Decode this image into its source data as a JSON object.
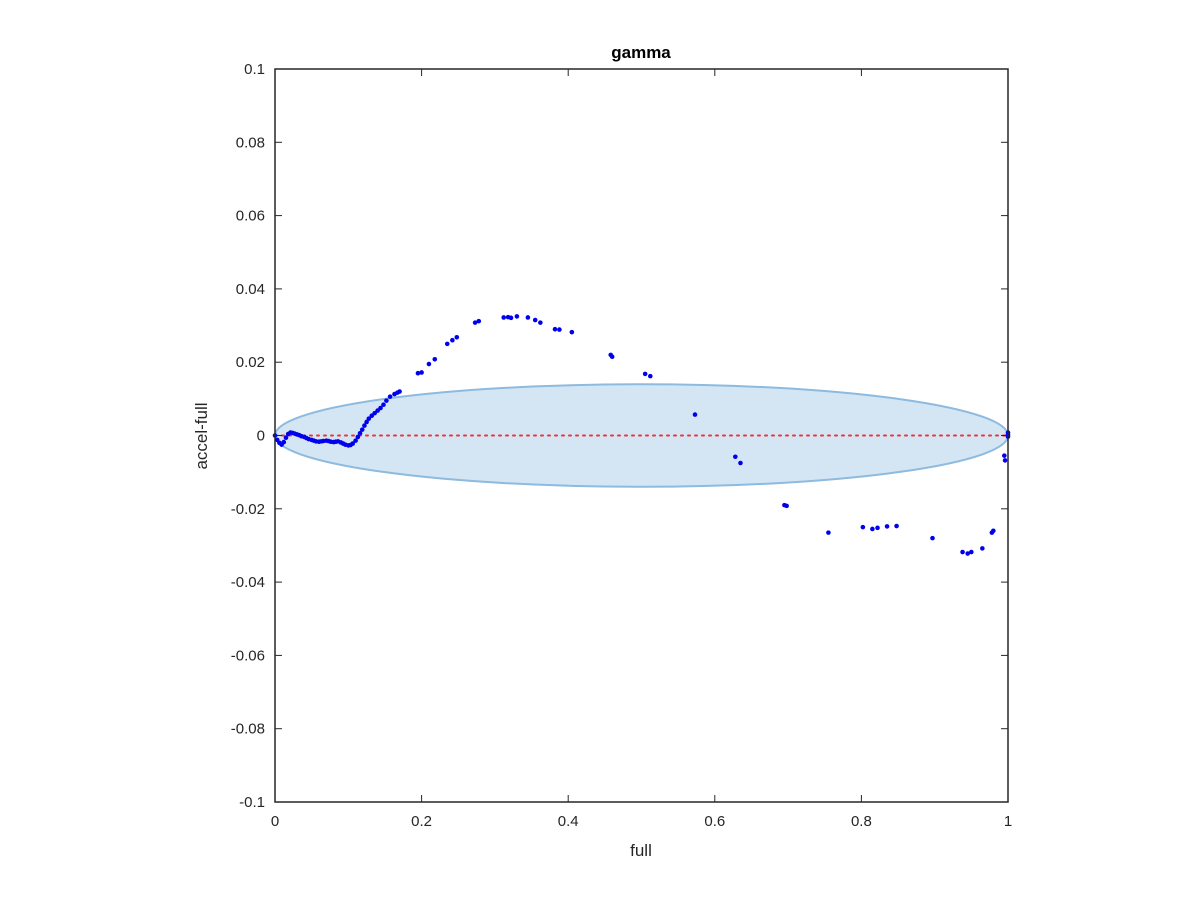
{
  "chart_data": {
    "type": "scatter",
    "title": "gamma",
    "xlabel": "full",
    "ylabel": "accel-full",
    "xlim": [
      0,
      1
    ],
    "ylim": [
      -0.1,
      0.1
    ],
    "x_ticks": [
      0,
      0.2,
      0.4,
      0.6,
      0.8,
      1
    ],
    "x_tick_labels": [
      "0",
      "0.2",
      "0.4",
      "0.6",
      "0.8",
      "1"
    ],
    "y_ticks": [
      -0.1,
      -0.08,
      -0.06,
      -0.04,
      -0.02,
      0,
      0.02,
      0.04,
      0.06,
      0.08,
      0.1
    ],
    "y_tick_labels": [
      "-0.1",
      "-0.08",
      "-0.06",
      "-0.04",
      "-0.02",
      "0",
      "0.02",
      "0.04",
      "0.06",
      "0.08",
      "0.1"
    ],
    "grid": false,
    "colors": {
      "points": "#0000ee",
      "ellipse_fill": "#d4e6f4",
      "ellipse_stroke": "#8dbadf",
      "zero_line": "#ee3333"
    },
    "ellipse": {
      "cx": 0.5,
      "cy": 0,
      "rx": 0.5,
      "ry": 0.014
    },
    "zero_line": {
      "y": 0,
      "x_range": [
        0,
        1
      ],
      "style": "dotted"
    },
    "series": [
      {
        "x": [
          0.0,
          0.003,
          0.006,
          0.009,
          0.012,
          0.015,
          0.018,
          0.021,
          0.024,
          0.027,
          0.03,
          0.033,
          0.036,
          0.04,
          0.043,
          0.046,
          0.05,
          0.053,
          0.056,
          0.06,
          0.063,
          0.066,
          0.07,
          0.073,
          0.076,
          0.08,
          0.083,
          0.086,
          0.09,
          0.093,
          0.096,
          0.1,
          0.103,
          0.106,
          0.11,
          0.113,
          0.116,
          0.119,
          0.122,
          0.125,
          0.128,
          0.132,
          0.136,
          0.14,
          0.144,
          0.148,
          0.152,
          0.157,
          0.163,
          0.167,
          0.17,
          0.195,
          0.2,
          0.21,
          0.218,
          0.235,
          0.242,
          0.248,
          0.273,
          0.278,
          0.312,
          0.318,
          0.322,
          0.33,
          0.345,
          0.355,
          0.362,
          0.382,
          0.388,
          0.405,
          0.458,
          0.46,
          0.505,
          0.512,
          0.573,
          0.628,
          0.635,
          0.695,
          0.698,
          0.755,
          0.802,
          0.815,
          0.822,
          0.835,
          0.848,
          0.897,
          0.938,
          0.945,
          0.95,
          0.965,
          0.978,
          0.98,
          0.995,
          0.996,
          1.0,
          1.0,
          1.0
        ],
        "y": [
          0.0,
          -0.0012,
          -0.002,
          -0.0025,
          -0.0018,
          -0.0006,
          0.0004,
          0.0008,
          0.0007,
          0.0005,
          0.0003,
          0.0001,
          -0.0002,
          -0.0004,
          -0.0007,
          -0.001,
          -0.0012,
          -0.0014,
          -0.0016,
          -0.0017,
          -0.0016,
          -0.0015,
          -0.0014,
          -0.0015,
          -0.0017,
          -0.0018,
          -0.0017,
          -0.0016,
          -0.0019,
          -0.0022,
          -0.0025,
          -0.0027,
          -0.0026,
          -0.0022,
          -0.0014,
          -0.0004,
          0.0006,
          0.0016,
          0.0027,
          0.0037,
          0.0046,
          0.0054,
          0.0061,
          0.0068,
          0.0075,
          0.0084,
          0.0095,
          0.0106,
          0.0113,
          0.0117,
          0.012,
          0.017,
          0.0172,
          0.0195,
          0.0208,
          0.025,
          0.026,
          0.0268,
          0.0308,
          0.0312,
          0.0322,
          0.0323,
          0.0321,
          0.0325,
          0.0322,
          0.0315,
          0.0308,
          0.029,
          0.0289,
          0.0282,
          0.022,
          0.0215,
          0.0168,
          0.0162,
          0.0057,
          -0.0058,
          -0.0075,
          -0.019,
          -0.0192,
          -0.0265,
          -0.025,
          -0.0255,
          -0.0252,
          -0.0248,
          -0.0247,
          -0.028,
          -0.0318,
          -0.0322,
          -0.0318,
          -0.0308,
          -0.0265,
          -0.026,
          -0.0055,
          -0.0068,
          0.0008,
          0.0002,
          -0.0003
        ]
      }
    ]
  }
}
